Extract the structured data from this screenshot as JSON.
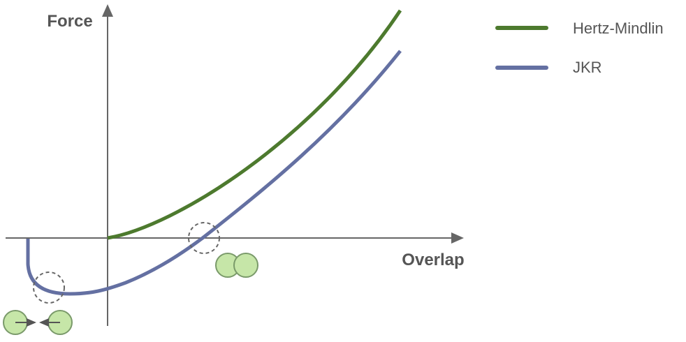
{
  "axes": {
    "y_label": "Force",
    "x_label": "Overlap"
  },
  "legend": {
    "items": [
      {
        "label": "Hertz-Mindlin"
      },
      {
        "label": "JKR"
      }
    ]
  }
}
